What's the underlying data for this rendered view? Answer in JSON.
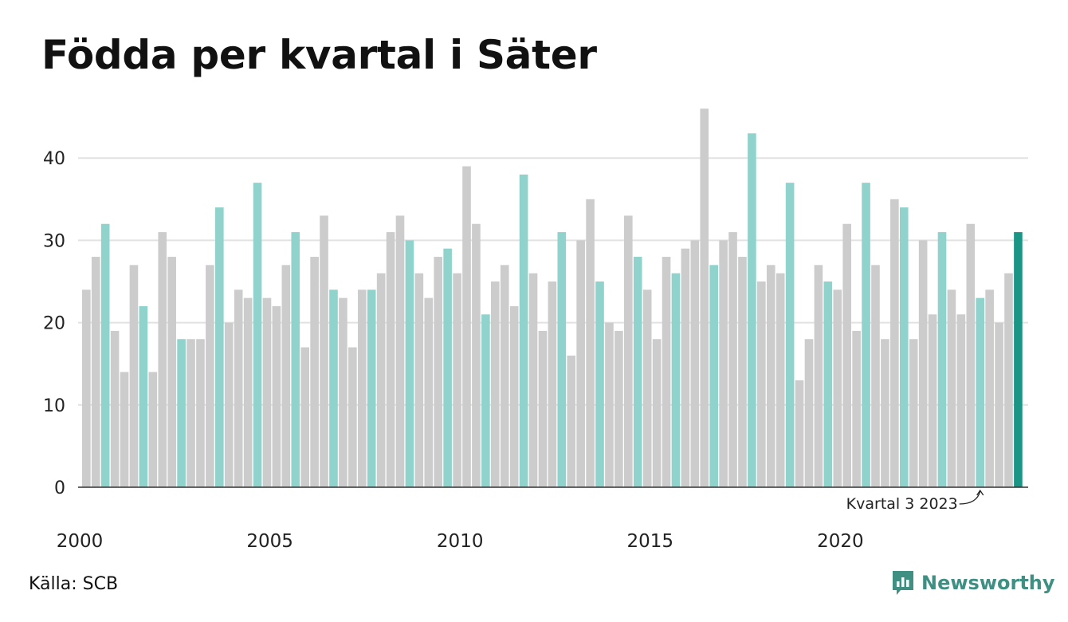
{
  "title": "Födda per kvartal i Säter",
  "source": "Källa: SCB",
  "brand": "Newsworthy",
  "colors": {
    "bar_default": "#cccccc",
    "bar_q3": "#8fd3cc",
    "bar_latest": "#1b9585",
    "grid": "#e2e2e2",
    "axis": "#333333",
    "brand": "#3f8f82"
  },
  "chart_data": {
    "type": "bar",
    "title": "Födda per kvartal i Säter",
    "xlabel": "",
    "ylabel": "",
    "ylim": [
      0,
      48
    ],
    "y_ticks": [
      0,
      10,
      20,
      30,
      40
    ],
    "x_tick_labels": [
      "2000",
      "2005",
      "2010",
      "2015",
      "2020"
    ],
    "grid": true,
    "highlight": "third quarter of each year",
    "annotation": {
      "text": "Kvartal 3 2023",
      "year": 2023,
      "quarter": 3
    },
    "series": [
      {
        "values": [
          24,
          28,
          32,
          19,
          14,
          27,
          22,
          14,
          31,
          28,
          18,
          18,
          18,
          27,
          34,
          20,
          24,
          23,
          37,
          23,
          22,
          27,
          31,
          17,
          28,
          33,
          24,
          23,
          17,
          24,
          24,
          26,
          31,
          33,
          30,
          26,
          23,
          28,
          29,
          26,
          39,
          32,
          21,
          25,
          27,
          22,
          38,
          26,
          19,
          25,
          31,
          16,
          30,
          35,
          25,
          20,
          19,
          33,
          28,
          24,
          18,
          28,
          26,
          29,
          30,
          46,
          27,
          30,
          31,
          28,
          43,
          25,
          27,
          26,
          37,
          13,
          18,
          27,
          25,
          24,
          32,
          19,
          37,
          27,
          18,
          35,
          34,
          18,
          30,
          21,
          31,
          24,
          21,
          32,
          23,
          24,
          20,
          26,
          31
        ],
        "start": {
          "year": 2000,
          "quarter": 1
        }
      }
    ]
  }
}
